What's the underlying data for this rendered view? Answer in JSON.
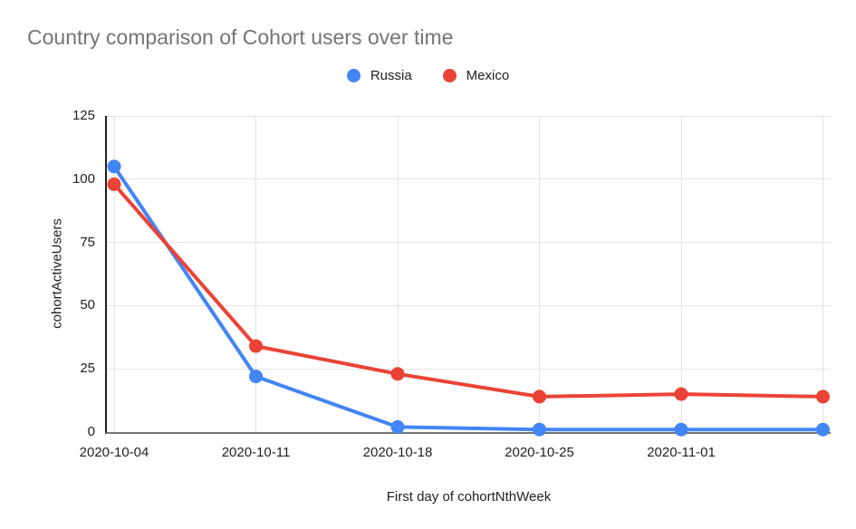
{
  "title": "Country comparison of Cohort users over time",
  "legend": {
    "items": [
      {
        "label": "Russia",
        "color": "#4285f4"
      },
      {
        "label": "Mexico",
        "color": "#ea4335"
      }
    ]
  },
  "chart_data": {
    "type": "line",
    "title": "Country comparison of Cohort users over time",
    "xlabel": "First day of cohortNthWeek",
    "ylabel": "cohortActiveUsers",
    "x_tick_labels": [
      "2020-10-04",
      "2020-10-11",
      "2020-10-18",
      "2020-10-25",
      "2020-11-01"
    ],
    "num_points": 6,
    "series": [
      {
        "name": "Russia",
        "color": "#4285f4",
        "values": [
          105,
          22,
          2,
          1,
          1,
          1
        ]
      },
      {
        "name": "Mexico",
        "color": "#ea4335",
        "values": [
          98,
          34,
          23,
          14,
          15,
          14
        ]
      }
    ],
    "yticks": [
      0,
      25,
      50,
      75,
      100,
      125
    ],
    "ylim": [
      0,
      125
    ],
    "grid": true,
    "legend_position": "top-center",
    "marker": "circle"
  }
}
